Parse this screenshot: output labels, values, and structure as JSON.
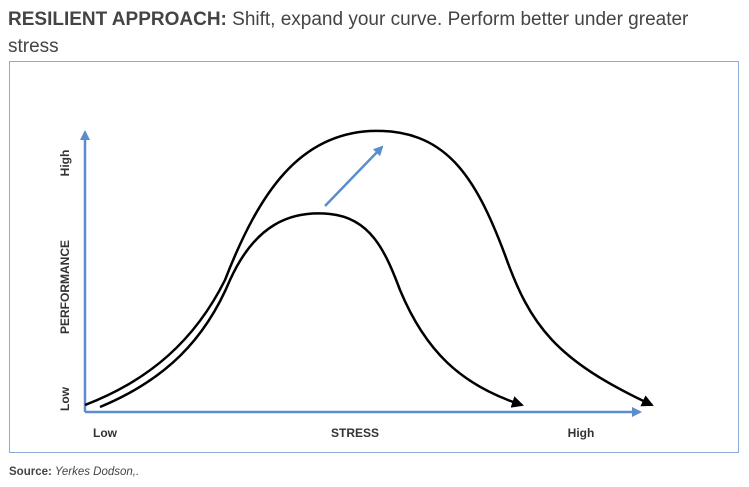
{
  "heading": {
    "lead": "RESILIENT APPROACH:",
    "rest": " Shift, expand your curve. Perform better under greater stress"
  },
  "diagram": {
    "y_axis_title": "PERFORMANCE",
    "y_low": "Low",
    "y_high": "High",
    "x_axis_title": "STRESS",
    "x_low": "Low",
    "x_high": "High",
    "axis_color": "#5b8ccc",
    "curve_color": "#000000",
    "arrow_color": "#5b8ccc"
  },
  "source": {
    "label": "Source:",
    "text": " Yerkes Dodson,."
  }
}
